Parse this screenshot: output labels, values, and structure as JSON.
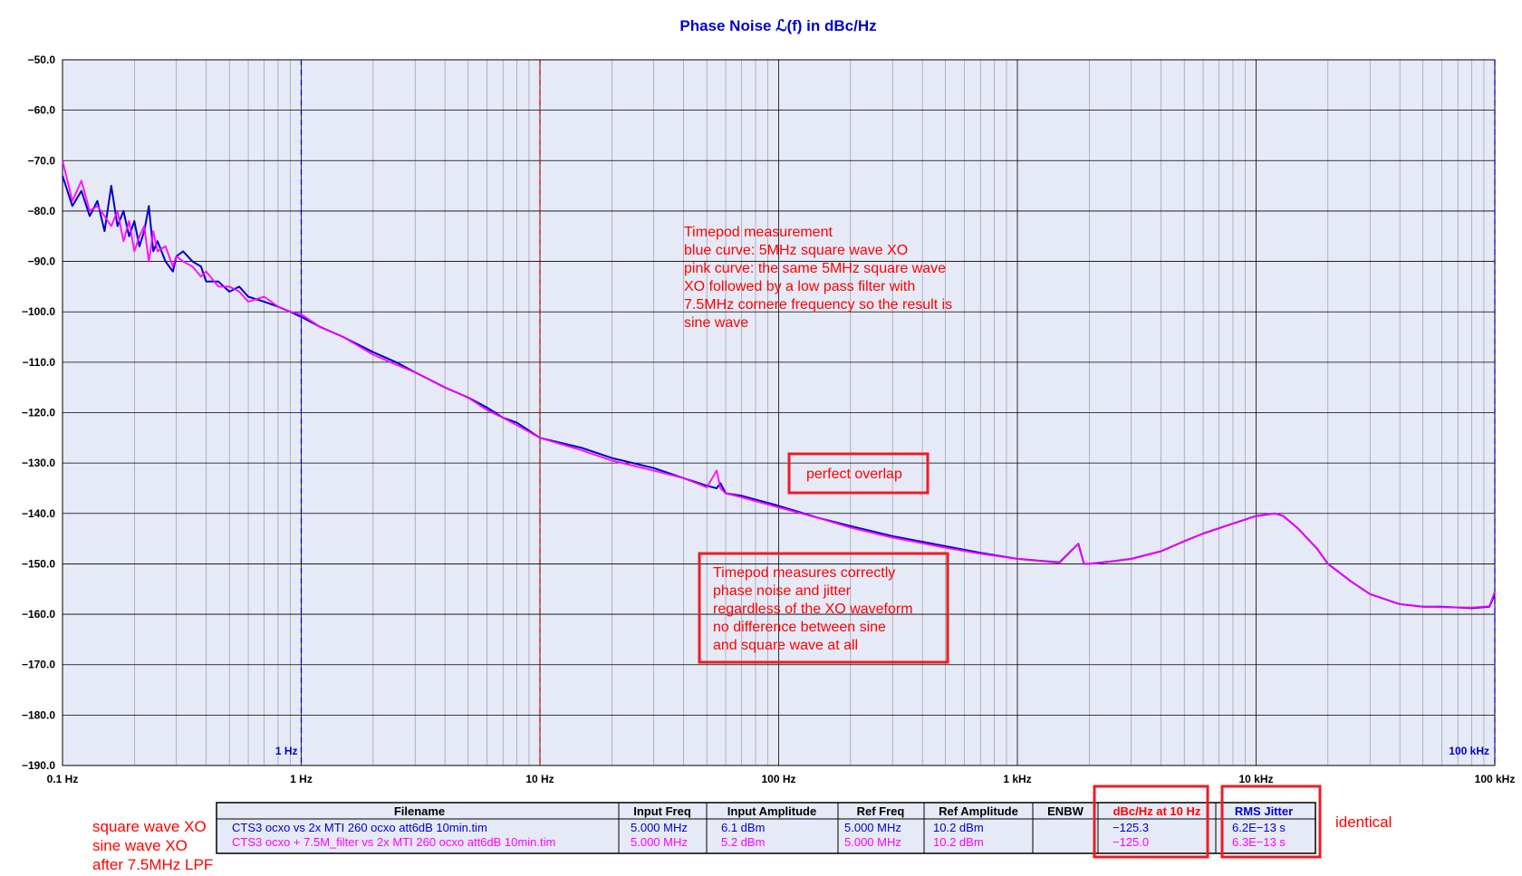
{
  "chart_data": {
    "type": "line",
    "title": "Phase Noise ℒ(f) in dBc/Hz",
    "x_scale": "log",
    "xlim": [
      0.1,
      100000
    ],
    "ylim": [
      -190,
      -50
    ],
    "grid": true,
    "x_ticks": [
      {
        "value": 0.1,
        "label": "0.1 Hz"
      },
      {
        "value": 1,
        "label": "1 Hz"
      },
      {
        "value": 10,
        "label": "10 Hz"
      },
      {
        "value": 100,
        "label": "100 Hz"
      },
      {
        "value": 1000,
        "label": "1 kHz"
      },
      {
        "value": 10000,
        "label": "10 kHz"
      },
      {
        "value": 100000,
        "label": "100 kHz"
      }
    ],
    "y_ticks": [
      {
        "value": -50,
        "label": "−50.0"
      },
      {
        "value": -60,
        "label": "−60.0"
      },
      {
        "value": -70,
        "label": "−70.0"
      },
      {
        "value": -80,
        "label": "−80.0"
      },
      {
        "value": -90,
        "label": "−90.0"
      },
      {
        "value": -100,
        "label": "−100.0"
      },
      {
        "value": -110,
        "label": "−110.0"
      },
      {
        "value": -120,
        "label": "−120.0"
      },
      {
        "value": -130,
        "label": "−130.0"
      },
      {
        "value": -140,
        "label": "−140.0"
      },
      {
        "value": -150,
        "label": "−150.0"
      },
      {
        "value": -160,
        "label": "−160.0"
      },
      {
        "value": -170,
        "label": "−170.0"
      },
      {
        "value": -180,
        "label": "−180.0"
      },
      {
        "value": -190,
        "label": "−190.0"
      }
    ],
    "markers": [
      {
        "x": 1,
        "color": "#0000cc",
        "label": "1 Hz"
      },
      {
        "x": 10,
        "color": "#cc0000",
        "label": ""
      },
      {
        "x": 100000,
        "color": "#0000cc",
        "label": "100 kHz"
      }
    ],
    "series": [
      {
        "color": "#0000cc",
        "x": [
          0.1,
          0.11,
          0.12,
          0.13,
          0.14,
          0.15,
          0.16,
          0.17,
          0.18,
          0.19,
          0.2,
          0.21,
          0.22,
          0.23,
          0.24,
          0.25,
          0.27,
          0.29,
          0.3,
          0.32,
          0.35,
          0.38,
          0.4,
          0.45,
          0.5,
          0.55,
          0.6,
          0.7,
          0.8,
          0.9,
          1,
          1.2,
          1.5,
          2,
          2.5,
          3,
          4,
          5,
          6,
          7,
          8,
          10,
          15,
          20,
          30,
          40,
          50,
          55,
          57,
          60,
          70,
          100,
          150,
          200,
          300,
          500,
          700,
          1000,
          1500,
          1800,
          1900,
          2000,
          2500,
          3000,
          4000,
          5000,
          6000,
          8000,
          10000,
          12000,
          13000,
          15000,
          18000,
          20000,
          25000,
          30000,
          40000,
          50000,
          60000,
          80000,
          95000,
          100000
        ],
        "y": [
          -73,
          -79,
          -76,
          -81,
          -78,
          -84,
          -75,
          -83,
          -80,
          -85,
          -82,
          -87,
          -84,
          -79,
          -88,
          -86,
          -90,
          -92,
          -89,
          -88,
          -90,
          -91,
          -94,
          -94,
          -96,
          -95,
          -97,
          -98,
          -99,
          -100,
          -101,
          -103,
          -105,
          -108,
          -110,
          -112,
          -115,
          -117,
          -119,
          -121,
          -122,
          -125,
          -127,
          -129,
          -131,
          -133,
          -134.5,
          -135,
          -134,
          -136,
          -136.5,
          -138.5,
          -141,
          -142.5,
          -144.5,
          -146.5,
          -147.8,
          -149,
          -149.7,
          -146,
          -150,
          -150,
          -149.5,
          -149,
          -147.5,
          -145.5,
          -144,
          -142,
          -140.5,
          -140,
          -140.5,
          -143,
          -147,
          -150,
          -153.5,
          -156,
          -158,
          -158.5,
          -158.5,
          -158.8,
          -158.5,
          -156
        ]
      },
      {
        "color": "#ff00ff",
        "x": [
          0.1,
          0.11,
          0.12,
          0.13,
          0.14,
          0.15,
          0.16,
          0.17,
          0.18,
          0.19,
          0.2,
          0.21,
          0.22,
          0.23,
          0.24,
          0.25,
          0.27,
          0.29,
          0.3,
          0.32,
          0.35,
          0.38,
          0.4,
          0.45,
          0.5,
          0.55,
          0.6,
          0.7,
          0.8,
          0.9,
          1,
          1.2,
          1.5,
          2,
          2.5,
          3,
          4,
          5,
          6,
          7,
          8,
          10,
          15,
          20,
          30,
          40,
          50,
          55,
          57,
          60,
          70,
          100,
          150,
          200,
          300,
          500,
          700,
          1000,
          1500,
          1800,
          1900,
          2000,
          2500,
          3000,
          4000,
          5000,
          6000,
          8000,
          10000,
          12000,
          13000,
          15000,
          18000,
          20000,
          25000,
          30000,
          40000,
          50000,
          60000,
          80000,
          95000,
          100000
        ],
        "y": [
          -70,
          -78,
          -74,
          -80,
          -79,
          -81,
          -83,
          -80,
          -86,
          -82,
          -88,
          -85,
          -83,
          -90,
          -84,
          -88,
          -87,
          -91,
          -89,
          -90,
          -91,
          -93,
          -92,
          -95,
          -95,
          -96,
          -98,
          -97,
          -99,
          -100,
          -100.5,
          -103,
          -105,
          -108.5,
          -110.5,
          -112,
          -115,
          -117,
          -119.5,
          -121,
          -122.5,
          -125,
          -127.5,
          -129.5,
          -131.5,
          -133,
          -134.8,
          -131.5,
          -135,
          -136,
          -136.8,
          -138.8,
          -141,
          -142.8,
          -144.8,
          -146.8,
          -148,
          -149,
          -149.8,
          -146,
          -150,
          -150,
          -149.5,
          -149,
          -147.5,
          -145.5,
          -144,
          -142,
          -140.5,
          -140,
          -140.5,
          -143,
          -147,
          -150,
          -153.5,
          -156,
          -158,
          -158.5,
          -158.6,
          -158.7,
          -158.4,
          -155.5
        ]
      }
    ]
  },
  "annotations": {
    "explanation": [
      "Timepod measurement",
      "blue curve: 5MHz square wave XO",
      "pink curve: the same 5MHz square wave",
      "XO followed by a low pass filter with",
      "7.5MHz cornere frequency so the result is",
      "sine wave"
    ],
    "overlap": "perfect overlap",
    "conclusion": [
      "Timepod measures correctly",
      "phase noise and jitter",
      "regardless of the XO waveform",
      "no difference between sine",
      "and square wave at all"
    ],
    "identical": "identical",
    "side_labels": [
      "square wave XO",
      "sine wave XO",
      "after 7.5MHz LPF"
    ]
  },
  "table": {
    "headers": [
      "Filename",
      "Input Freq",
      "Input Amplitude",
      "Ref Freq",
      "Ref Amplitude",
      "ENBW",
      "dBc/Hz at 10 Hz",
      "RMS Jitter"
    ],
    "rows": [
      [
        "CTS3 ocxo vs 2x MTI 260 ocxo att6dB 10min.tim",
        "5.000 MHz",
        "6.1 dBm",
        "5.000 MHz",
        "10.2 dBm",
        "",
        "−125.3",
        "6.2E−13 s"
      ],
      [
        "CTS3 ocxo + 7.5M_filter vs 2x MTI 260 ocxo att6dB 10min.tim",
        "5.000 MHz",
        "5.2 dBm",
        "5.000 MHz",
        "10.2 dBm",
        "",
        "−125.0",
        "6.3E−13 s"
      ]
    ]
  }
}
